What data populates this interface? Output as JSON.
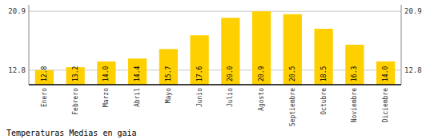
{
  "chart_data": {
    "type": "bar",
    "title": "Temperaturas Medias en gaia",
    "categories": [
      "Enero",
      "Febrero",
      "Marzo",
      "Abril",
      "Mayo",
      "Junio",
      "Julio",
      "Agosto",
      "Septiembre",
      "Octubre",
      "Noviembre",
      "Diciembre"
    ],
    "values": [
      12.8,
      13.2,
      14.0,
      14.4,
      15.7,
      17.6,
      20.0,
      20.9,
      20.5,
      18.5,
      16.3,
      14.0
    ],
    "value_labels": [
      "12.8",
      "13.2",
      "14.0",
      "14.4",
      "15.7",
      "17.6",
      "20.0",
      "20.9",
      "20.5",
      "18.5",
      "16.3",
      "14.0"
    ],
    "color": "#FFD000",
    "ylim": [
      10.8,
      21.8
    ],
    "yticks": [
      12.8,
      20.9
    ],
    "y2lim": [
      10.8,
      21.8
    ],
    "y2ticks": [
      12.8,
      20.9
    ],
    "grid": true,
    "data_labels": true
  }
}
